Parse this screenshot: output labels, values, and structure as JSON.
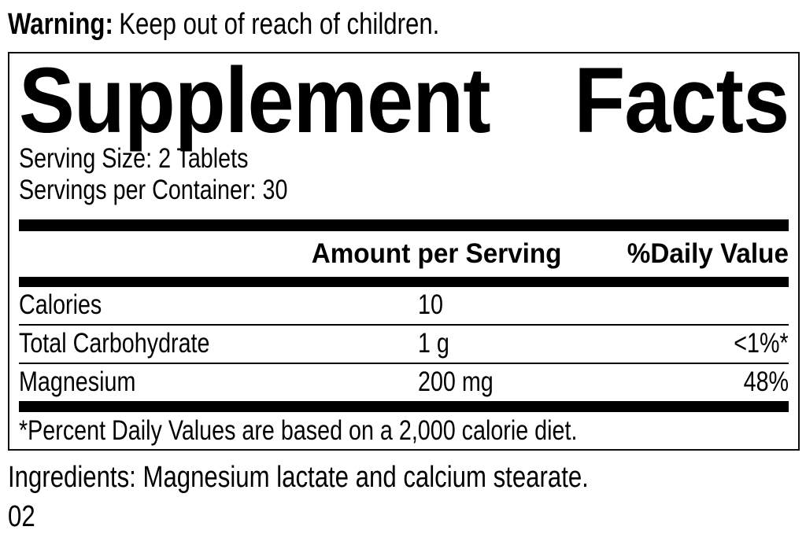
{
  "colors": {
    "ink": "#000000",
    "paper": "#ffffff"
  },
  "warning": {
    "label": "Warning:",
    "text": "Keep out of reach of children."
  },
  "panel": {
    "title_word_1": "Supplement",
    "title_word_2": "Facts",
    "serving_size": "Serving Size: 2 Tablets",
    "servings_per_container": "Servings per Container: 30",
    "header": {
      "amount": "Amount per Serving",
      "daily_value": "%Daily Value"
    },
    "rows": [
      {
        "name": "Calories",
        "amount": "10",
        "daily_value": ""
      },
      {
        "name": "Total Carbohydrate",
        "amount": "1 g",
        "daily_value": "<1%*"
      },
      {
        "name": "Magnesium",
        "amount": "200 mg",
        "daily_value": "48%"
      }
    ],
    "footnote": "*Percent Daily Values are based on a 2,000 calorie diet."
  },
  "ingredients": "Ingredients: Magnesium lactate and calcium stearate.",
  "batch_code": "02"
}
